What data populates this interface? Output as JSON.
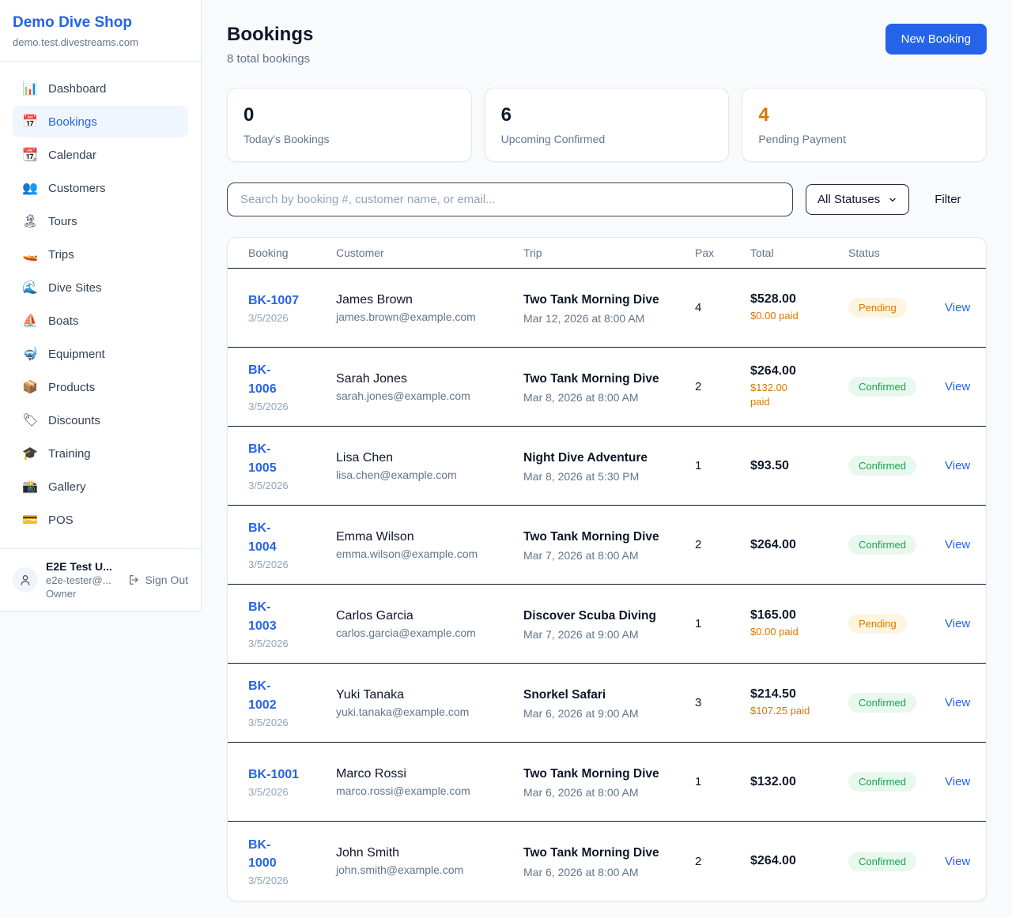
{
  "sidebar": {
    "brand": "Demo Dive Shop",
    "domain": "demo.test.divestreams.com",
    "items": [
      {
        "icon": "📊",
        "icon_name": "dashboard-icon",
        "label": "Dashboard",
        "active": false
      },
      {
        "icon": "📅",
        "icon_name": "bookings-icon",
        "label": "Bookings",
        "active": true
      },
      {
        "icon": "📆",
        "icon_name": "calendar-icon",
        "label": "Calendar",
        "active": false
      },
      {
        "icon": "👥",
        "icon_name": "customers-icon",
        "label": "Customers",
        "active": false
      },
      {
        "icon": "🏝",
        "icon_name": "tours-icon",
        "label": "Tours",
        "active": false
      },
      {
        "icon": "🚤",
        "icon_name": "trips-icon",
        "label": "Trips",
        "active": false
      },
      {
        "icon": "🌊",
        "icon_name": "dive-sites-icon",
        "label": "Dive Sites",
        "active": false
      },
      {
        "icon": "⛵",
        "icon_name": "boats-icon",
        "label": "Boats",
        "active": false
      },
      {
        "icon": "🤿",
        "icon_name": "equipment-icon",
        "label": "Equipment",
        "active": false
      },
      {
        "icon": "📦",
        "icon_name": "products-icon",
        "label": "Products",
        "active": false
      },
      {
        "icon": "🏷",
        "icon_name": "discounts-icon",
        "label": "Discounts",
        "active": false
      },
      {
        "icon": "🎓",
        "icon_name": "training-icon",
        "label": "Training",
        "active": false
      },
      {
        "icon": "📸",
        "icon_name": "gallery-icon",
        "label": "Gallery",
        "active": false
      },
      {
        "icon": "💳",
        "icon_name": "pos-icon",
        "label": "POS",
        "active": false
      }
    ],
    "user": {
      "name": "E2E Test U...",
      "email": "e2e-tester@...",
      "role": "Owner",
      "sign_out": "Sign Out"
    }
  },
  "header": {
    "title": "Bookings",
    "subtitle": "8 total bookings",
    "new_booking": "New Booking"
  },
  "stats": [
    {
      "value": "0",
      "label": "Today's Bookings",
      "value_color": "#0f172a"
    },
    {
      "value": "6",
      "label": "Upcoming Confirmed",
      "value_color": "#0f172a"
    },
    {
      "value": "4",
      "label": "Pending Payment",
      "value_color": "#d97706"
    }
  ],
  "filters": {
    "search_placeholder": "Search by booking #, customer name, or email...",
    "status_select": "All Statuses",
    "filter_label": "Filter"
  },
  "table": {
    "headers": [
      "Booking",
      "Customer",
      "Trip",
      "Pax",
      "Total",
      "Status"
    ],
    "view_label": "View",
    "rows": [
      {
        "id": "BK-1007",
        "id_wrapped": false,
        "date": "3/5/2026",
        "customer": "James Brown",
        "email": "james.brown@example.com",
        "trip": "Two Tank Morning Dive",
        "trip_date": "Mar 12, 2026 at 8:00 AM",
        "pax": "4",
        "total": "$528.00",
        "paid": "$0.00 paid",
        "paid_wrapped": false,
        "status": "Pending"
      },
      {
        "id": "BK-1006",
        "id_wrapped": true,
        "date": "3/5/2026",
        "customer": "Sarah Jones",
        "email": "sarah.jones@example.com",
        "trip": "Two Tank Morning Dive",
        "trip_date": "Mar 8, 2026 at 8:00 AM",
        "pax": "2",
        "total": "$264.00",
        "paid": "$132.00 paid",
        "paid_wrapped": true,
        "status": "Confirmed"
      },
      {
        "id": "BK-1005",
        "id_wrapped": true,
        "date": "3/5/2026",
        "customer": "Lisa Chen",
        "email": "lisa.chen@example.com",
        "trip": "Night Dive Adventure",
        "trip_date": "Mar 8, 2026 at 5:30 PM",
        "pax": "1",
        "total": "$93.50",
        "paid": "",
        "paid_wrapped": false,
        "status": "Confirmed"
      },
      {
        "id": "BK-1004",
        "id_wrapped": true,
        "date": "3/5/2026",
        "customer": "Emma Wilson",
        "email": "emma.wilson@example.com",
        "trip": "Two Tank Morning Dive",
        "trip_date": "Mar 7, 2026 at 8:00 AM",
        "pax": "2",
        "total": "$264.00",
        "paid": "",
        "paid_wrapped": false,
        "status": "Confirmed"
      },
      {
        "id": "BK-1003",
        "id_wrapped": true,
        "date": "3/5/2026",
        "customer": "Carlos Garcia",
        "email": "carlos.garcia@example.com",
        "trip": "Discover Scuba Diving",
        "trip_date": "Mar 7, 2026 at 9:00 AM",
        "pax": "1",
        "total": "$165.00",
        "paid": "$0.00 paid",
        "paid_wrapped": false,
        "status": "Pending"
      },
      {
        "id": "BK-1002",
        "id_wrapped": true,
        "date": "3/5/2026",
        "customer": "Yuki Tanaka",
        "email": "yuki.tanaka@example.com",
        "trip": "Snorkel Safari",
        "trip_date": "Mar 6, 2026 at 9:00 AM",
        "pax": "3",
        "total": "$214.50",
        "paid": "$107.25 paid",
        "paid_wrapped": false,
        "status": "Confirmed"
      },
      {
        "id": "BK-1001",
        "id_wrapped": false,
        "date": "3/5/2026",
        "customer": "Marco Rossi",
        "email": "marco.rossi@example.com",
        "trip": "Two Tank Morning Dive",
        "trip_date": "Mar 6, 2026 at 8:00 AM",
        "pax": "1",
        "total": "$132.00",
        "paid": "",
        "paid_wrapped": false,
        "status": "Confirmed"
      },
      {
        "id": "BK-1000",
        "id_wrapped": true,
        "date": "3/5/2026",
        "customer": "John Smith",
        "email": "john.smith@example.com",
        "trip": "Two Tank Morning Dive",
        "trip_date": "Mar 6, 2026 at 8:00 AM",
        "pax": "2",
        "total": "$264.00",
        "paid": "",
        "paid_wrapped": false,
        "status": "Confirmed"
      }
    ]
  },
  "colors": {
    "brand_blue": "#2563eb",
    "orange": "#d97706",
    "green": "#16a34a",
    "pending_badge_bg": "#fdf5e0",
    "confirmed_badge_bg": "#e9f8ef",
    "page_bg": "#f8fafc"
  }
}
